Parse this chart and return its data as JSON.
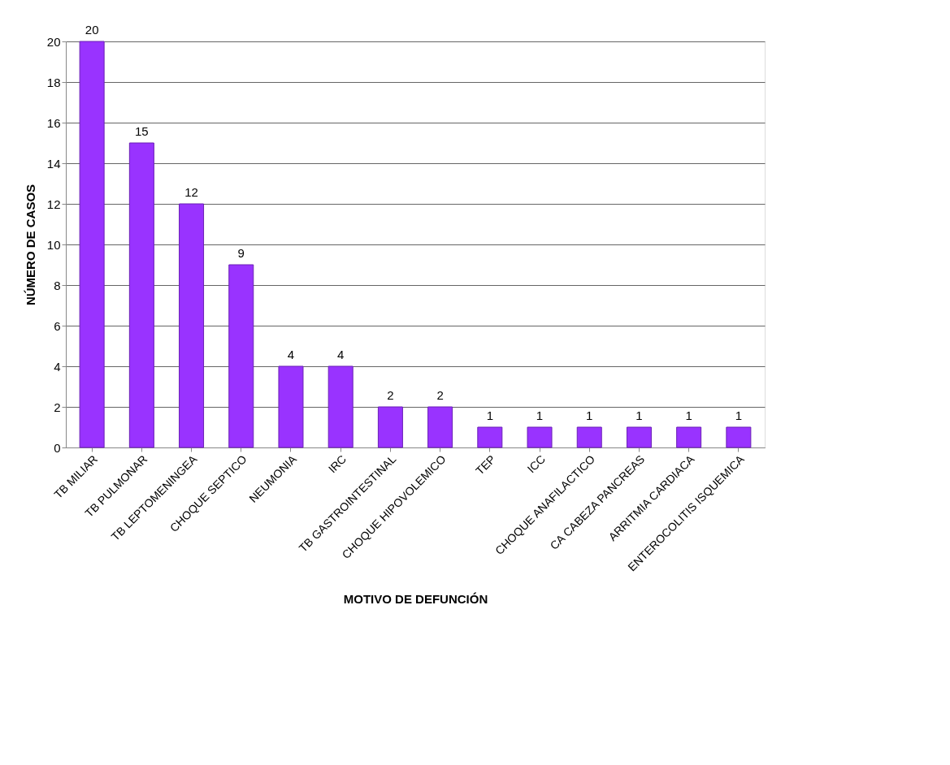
{
  "chart_data": {
    "type": "bar",
    "xlabel": "MOTIVO DE DEFUNCIÓN",
    "ylabel": "NÚMERO DE CASOS",
    "categories": [
      "TB MILIAR",
      "TB PULMONAR",
      "TB LEPTOMENINGEA",
      "CHOQUE SEPTICO",
      "NEUMONIA",
      "IRC",
      "TB GASTROINTESTINAL",
      "CHOQUE HIPOVOLEMICO",
      "TEP",
      "ICC",
      "CHOQUE ANAFILACTICO",
      "CA CABEZA PANCREAS",
      "ARRITMIA CARDIACA",
      "ENTEROCOLITIS ISQUEMICA"
    ],
    "values": [
      20,
      15,
      12,
      9,
      4,
      4,
      2,
      2,
      1,
      1,
      1,
      1,
      1,
      1
    ],
    "color": "#9933ff",
    "ylim": [
      0,
      20
    ],
    "yticks": [
      0,
      2,
      4,
      6,
      8,
      10,
      12,
      14,
      16,
      18,
      20
    ],
    "grid": "y",
    "data_labels": true
  }
}
